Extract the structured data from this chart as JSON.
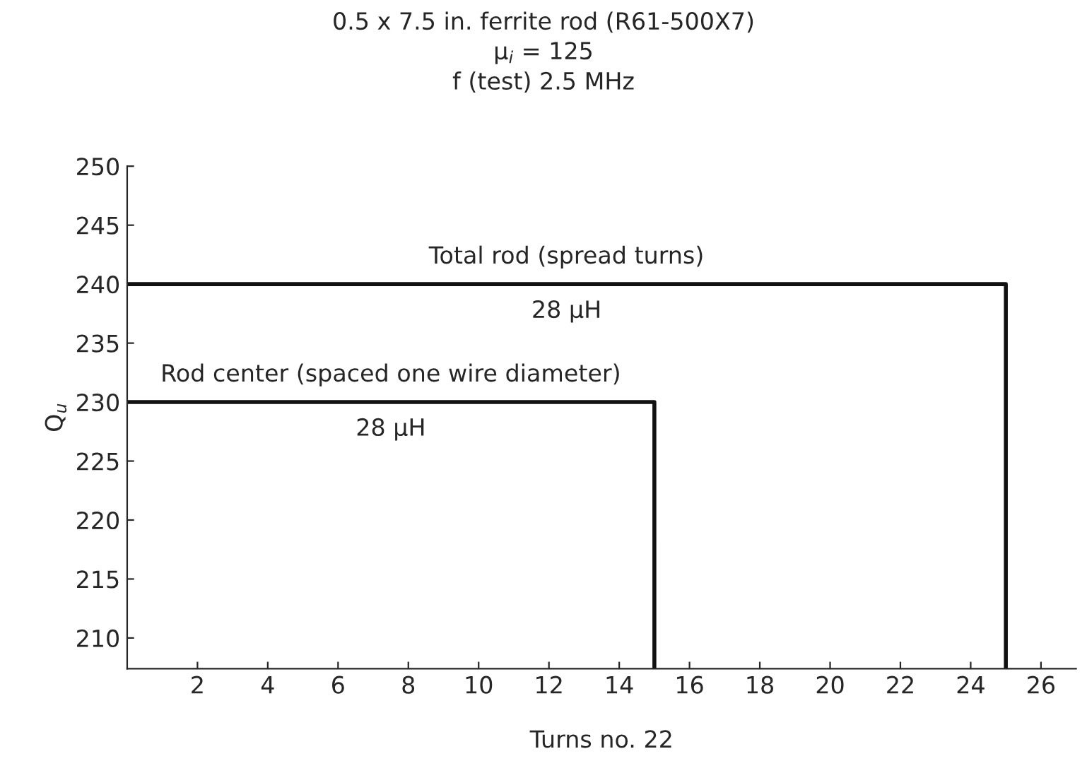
{
  "chart_data": {
    "type": "line",
    "title": "0.5 x 7.5 in. ferrite rod (R61-500X7)\nμ$_{i}$ = 125\nf (test) 2.5 MHz",
    "xlabel": "Turns no. 22",
    "ylabel": "Q$_{u}$",
    "series": [
      {
        "x": [
          0,
          25,
          25
        ],
        "values": [
          240,
          240,
          207.4
        ],
        "color": "#111111"
      },
      {
        "x": [
          0,
          15,
          15
        ],
        "values": [
          230,
          230,
          207.4
        ],
        "color": "#111111"
      }
    ],
    "annotations": [
      "Total rod (spread turns)",
      "28 μH",
      "Rod center (spaced one wire diameter)",
      "28 μH"
    ],
    "xlim": [
      0,
      27
    ],
    "ylim": [
      207.4,
      250
    ],
    "xticks": [
      2,
      4,
      6,
      8,
      10,
      12,
      14,
      16,
      18,
      20,
      22,
      24,
      26
    ],
    "yticks": [
      210,
      215,
      220,
      225,
      230,
      235,
      240,
      245,
      250
    ],
    "grid": false,
    "legend": false,
    "marker": "none",
    "line_style": "solid"
  }
}
